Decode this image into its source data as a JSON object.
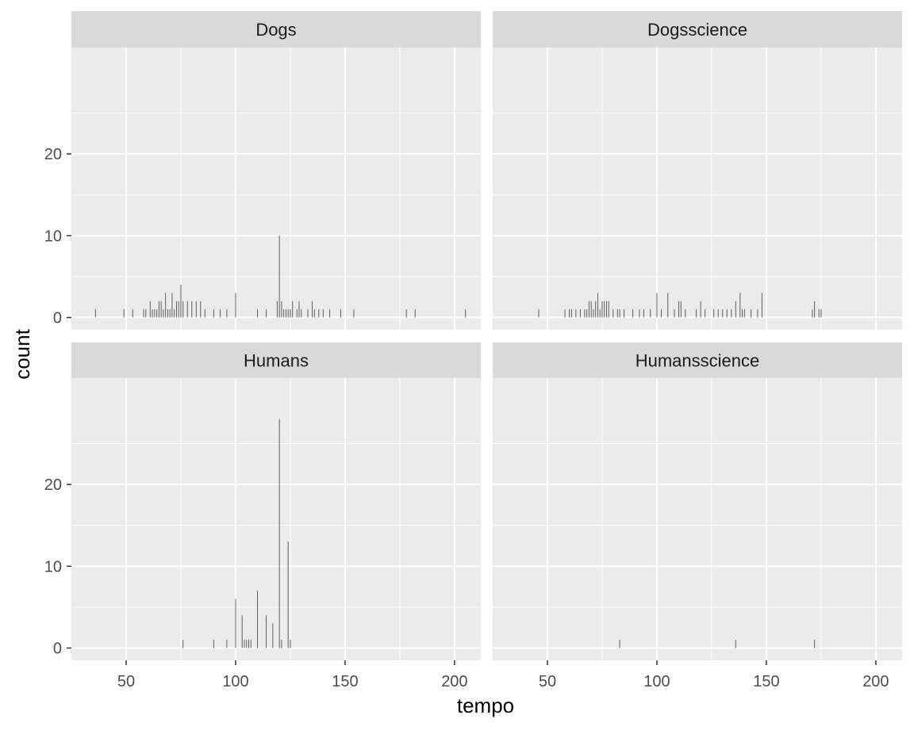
{
  "chart_data": {
    "type": "bar",
    "xlabel": "tempo",
    "ylabel": "count",
    "xlim": [
      25,
      212
    ],
    "ylim": [
      -1.5,
      33
    ],
    "x_ticks": [
      50,
      100,
      150,
      200
    ],
    "y_ticks": [
      0,
      10,
      20
    ],
    "grid": true,
    "facets": [
      {
        "name": "Dogs",
        "bars": [
          {
            "x": 36,
            "count": 1
          },
          {
            "x": 49,
            "count": 1
          },
          {
            "x": 53,
            "count": 1
          },
          {
            "x": 58,
            "count": 1
          },
          {
            "x": 59,
            "count": 1
          },
          {
            "x": 61,
            "count": 2
          },
          {
            "x": 62,
            "count": 1
          },
          {
            "x": 63,
            "count": 1
          },
          {
            "x": 64,
            "count": 1
          },
          {
            "x": 65,
            "count": 2
          },
          {
            "x": 66,
            "count": 2
          },
          {
            "x": 67,
            "count": 1
          },
          {
            "x": 68,
            "count": 3
          },
          {
            "x": 69,
            "count": 1
          },
          {
            "x": 70,
            "count": 1
          },
          {
            "x": 71,
            "count": 3
          },
          {
            "x": 72,
            "count": 1
          },
          {
            "x": 73,
            "count": 2
          },
          {
            "x": 74,
            "count": 2
          },
          {
            "x": 75,
            "count": 4
          },
          {
            "x": 76,
            "count": 2
          },
          {
            "x": 78,
            "count": 2
          },
          {
            "x": 80,
            "count": 2
          },
          {
            "x": 82,
            "count": 2
          },
          {
            "x": 84,
            "count": 2
          },
          {
            "x": 86,
            "count": 1
          },
          {
            "x": 90,
            "count": 1
          },
          {
            "x": 93,
            "count": 1
          },
          {
            "x": 96,
            "count": 1
          },
          {
            "x": 100,
            "count": 3
          },
          {
            "x": 110,
            "count": 1
          },
          {
            "x": 114,
            "count": 1
          },
          {
            "x": 119,
            "count": 2
          },
          {
            "x": 120,
            "count": 10
          },
          {
            "x": 121,
            "count": 2
          },
          {
            "x": 122,
            "count": 1
          },
          {
            "x": 123,
            "count": 1
          },
          {
            "x": 124,
            "count": 1
          },
          {
            "x": 125,
            "count": 1
          },
          {
            "x": 126,
            "count": 2
          },
          {
            "x": 128,
            "count": 1
          },
          {
            "x": 129,
            "count": 2
          },
          {
            "x": 130,
            "count": 1
          },
          {
            "x": 133,
            "count": 1
          },
          {
            "x": 135,
            "count": 2
          },
          {
            "x": 136,
            "count": 1
          },
          {
            "x": 138,
            "count": 1
          },
          {
            "x": 140,
            "count": 1
          },
          {
            "x": 143,
            "count": 1
          },
          {
            "x": 148,
            "count": 1
          },
          {
            "x": 154,
            "count": 1
          },
          {
            "x": 178,
            "count": 1
          },
          {
            "x": 182,
            "count": 1
          },
          {
            "x": 205,
            "count": 1
          }
        ]
      },
      {
        "name": "Dogsscience",
        "bars": [
          {
            "x": 46,
            "count": 1
          },
          {
            "x": 58,
            "count": 1
          },
          {
            "x": 60,
            "count": 1
          },
          {
            "x": 61,
            "count": 1
          },
          {
            "x": 63,
            "count": 1
          },
          {
            "x": 65,
            "count": 1
          },
          {
            "x": 67,
            "count": 1
          },
          {
            "x": 68,
            "count": 1
          },
          {
            "x": 69,
            "count": 2
          },
          {
            "x": 70,
            "count": 2
          },
          {
            "x": 71,
            "count": 1
          },
          {
            "x": 72,
            "count": 2
          },
          {
            "x": 73,
            "count": 3
          },
          {
            "x": 74,
            "count": 1
          },
          {
            "x": 75,
            "count": 2
          },
          {
            "x": 76,
            "count": 2
          },
          {
            "x": 77,
            "count": 2
          },
          {
            "x": 78,
            "count": 2
          },
          {
            "x": 80,
            "count": 1
          },
          {
            "x": 82,
            "count": 1
          },
          {
            "x": 83,
            "count": 1
          },
          {
            "x": 85,
            "count": 1
          },
          {
            "x": 89,
            "count": 1
          },
          {
            "x": 92,
            "count": 1
          },
          {
            "x": 94,
            "count": 1
          },
          {
            "x": 97,
            "count": 1
          },
          {
            "x": 100,
            "count": 3
          },
          {
            "x": 102,
            "count": 1
          },
          {
            "x": 105,
            "count": 3
          },
          {
            "x": 108,
            "count": 1
          },
          {
            "x": 110,
            "count": 2
          },
          {
            "x": 111,
            "count": 2
          },
          {
            "x": 113,
            "count": 1
          },
          {
            "x": 118,
            "count": 1
          },
          {
            "x": 120,
            "count": 2
          },
          {
            "x": 122,
            "count": 1
          },
          {
            "x": 126,
            "count": 1
          },
          {
            "x": 128,
            "count": 1
          },
          {
            "x": 130,
            "count": 1
          },
          {
            "x": 132,
            "count": 1
          },
          {
            "x": 134,
            "count": 1
          },
          {
            "x": 136,
            "count": 2
          },
          {
            "x": 138,
            "count": 3
          },
          {
            "x": 139,
            "count": 1
          },
          {
            "x": 140,
            "count": 1
          },
          {
            "x": 143,
            "count": 1
          },
          {
            "x": 146,
            "count": 1
          },
          {
            "x": 148,
            "count": 3
          },
          {
            "x": 171,
            "count": 1
          },
          {
            "x": 172,
            "count": 2
          },
          {
            "x": 174,
            "count": 1
          },
          {
            "x": 175,
            "count": 1
          }
        ]
      },
      {
        "name": "Humans",
        "bars": [
          {
            "x": 76,
            "count": 1
          },
          {
            "x": 90,
            "count": 1
          },
          {
            "x": 96,
            "count": 1
          },
          {
            "x": 100,
            "count": 6
          },
          {
            "x": 103,
            "count": 4
          },
          {
            "x": 104,
            "count": 1
          },
          {
            "x": 105,
            "count": 1
          },
          {
            "x": 106,
            "count": 1
          },
          {
            "x": 107,
            "count": 1
          },
          {
            "x": 110,
            "count": 7
          },
          {
            "x": 114,
            "count": 4
          },
          {
            "x": 117,
            "count": 3
          },
          {
            "x": 120,
            "count": 28
          },
          {
            "x": 121,
            "count": 1
          },
          {
            "x": 124,
            "count": 13
          },
          {
            "x": 125,
            "count": 1
          }
        ]
      },
      {
        "name": "Humansscience",
        "bars": [
          {
            "x": 83,
            "count": 1
          },
          {
            "x": 136,
            "count": 1
          },
          {
            "x": 172,
            "count": 1
          }
        ]
      }
    ]
  }
}
